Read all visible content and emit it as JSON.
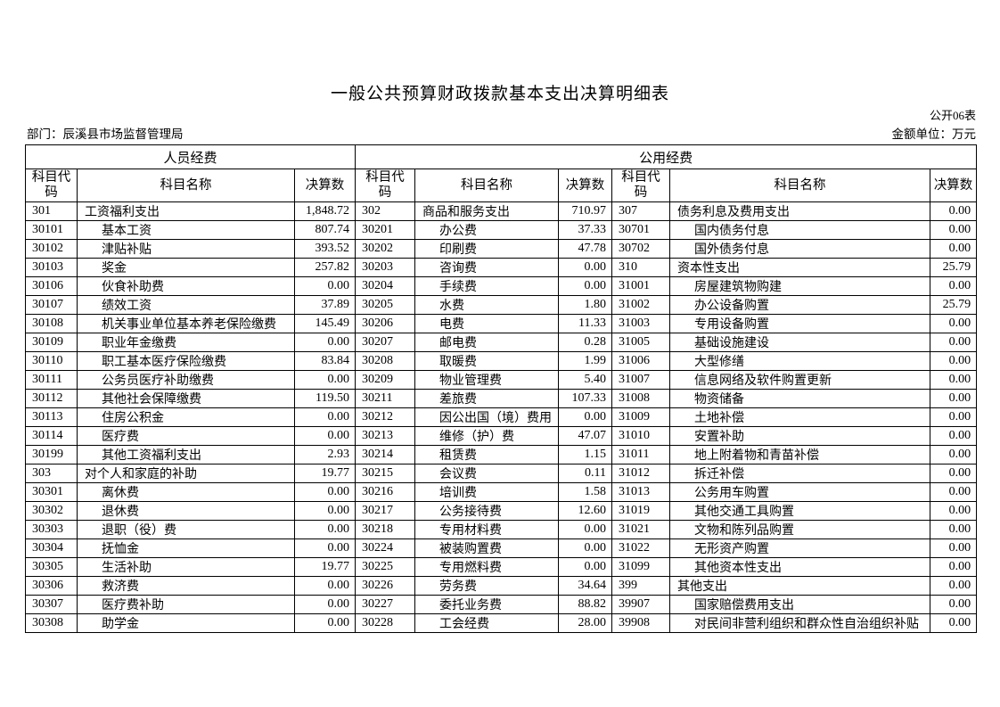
{
  "title": "一般公共预算财政拨款基本支出决算明细表",
  "meta": {
    "table_no": "公开06表",
    "department_label": "部门：",
    "department_name": "辰溪县市场监督管理局",
    "unit": "金额单位：万元"
  },
  "table": {
    "section_headers": {
      "personnel": "人员经费",
      "public": "公用经费"
    },
    "col_headers": {
      "code": "科目代码",
      "name": "科目名称",
      "amount": "决算数"
    },
    "personnel": [
      {
        "code": "301",
        "name": "工资福利支出",
        "level": 0,
        "value": "1,848.72"
      },
      {
        "code": "30101",
        "name": "基本工资",
        "level": 1,
        "value": "807.74"
      },
      {
        "code": "30102",
        "name": "津贴补贴",
        "level": 1,
        "value": "393.52"
      },
      {
        "code": "30103",
        "name": "奖金",
        "level": 1,
        "value": "257.82"
      },
      {
        "code": "30106",
        "name": "伙食补助费",
        "level": 1,
        "value": "0.00"
      },
      {
        "code": "30107",
        "name": "绩效工资",
        "level": 1,
        "value": "37.89"
      },
      {
        "code": "30108",
        "name": "机关事业单位基本养老保险缴费",
        "level": 1,
        "value": "145.49"
      },
      {
        "code": "30109",
        "name": "职业年金缴费",
        "level": 1,
        "value": "0.00"
      },
      {
        "code": "30110",
        "name": "职工基本医疗保险缴费",
        "level": 1,
        "value": "83.84"
      },
      {
        "code": "30111",
        "name": "公务员医疗补助缴费",
        "level": 1,
        "value": "0.00"
      },
      {
        "code": "30112",
        "name": "其他社会保障缴费",
        "level": 1,
        "value": "119.50"
      },
      {
        "code": "30113",
        "name": "住房公积金",
        "level": 1,
        "value": "0.00"
      },
      {
        "code": "30114",
        "name": "医疗费",
        "level": 1,
        "value": "0.00"
      },
      {
        "code": "30199",
        "name": "其他工资福利支出",
        "level": 1,
        "value": "2.93"
      },
      {
        "code": "303",
        "name": "对个人和家庭的补助",
        "level": 0,
        "value": "19.77"
      },
      {
        "code": "30301",
        "name": "离休费",
        "level": 1,
        "value": "0.00"
      },
      {
        "code": "30302",
        "name": "退休费",
        "level": 1,
        "value": "0.00"
      },
      {
        "code": "30303",
        "name": "退职（役）费",
        "level": 1,
        "value": "0.00"
      },
      {
        "code": "30304",
        "name": "抚恤金",
        "level": 1,
        "value": "0.00"
      },
      {
        "code": "30305",
        "name": "生活补助",
        "level": 1,
        "value": "19.77"
      },
      {
        "code": "30306",
        "name": "救济费",
        "level": 1,
        "value": "0.00"
      },
      {
        "code": "30307",
        "name": "医疗费补助",
        "level": 1,
        "value": "0.00"
      },
      {
        "code": "30308",
        "name": "助学金",
        "level": 1,
        "value": "0.00"
      }
    ],
    "public_a": [
      {
        "code": "302",
        "name": "商品和服务支出",
        "level": 0,
        "value": "710.97"
      },
      {
        "code": "30201",
        "name": "办公费",
        "level": 1,
        "value": "37.33"
      },
      {
        "code": "30202",
        "name": "印刷费",
        "level": 1,
        "value": "47.78"
      },
      {
        "code": "30203",
        "name": "咨询费",
        "level": 1,
        "value": "0.00"
      },
      {
        "code": "30204",
        "name": "手续费",
        "level": 1,
        "value": "0.00"
      },
      {
        "code": "30205",
        "name": "水费",
        "level": 1,
        "value": "1.80"
      },
      {
        "code": "30206",
        "name": "电费",
        "level": 1,
        "value": "11.33"
      },
      {
        "code": "30207",
        "name": "邮电费",
        "level": 1,
        "value": "0.28"
      },
      {
        "code": "30208",
        "name": "取暖费",
        "level": 1,
        "value": "1.99"
      },
      {
        "code": "30209",
        "name": "物业管理费",
        "level": 1,
        "value": "5.40"
      },
      {
        "code": "30211",
        "name": "差旅费",
        "level": 1,
        "value": "107.33"
      },
      {
        "code": "30212",
        "name": "因公出国（境）费用",
        "level": 1,
        "value": "0.00"
      },
      {
        "code": "30213",
        "name": "维修（护）费",
        "level": 1,
        "value": "47.07"
      },
      {
        "code": "30214",
        "name": "租赁费",
        "level": 1,
        "value": "1.15"
      },
      {
        "code": "30215",
        "name": "会议费",
        "level": 1,
        "value": "0.11"
      },
      {
        "code": "30216",
        "name": "培训费",
        "level": 1,
        "value": "1.58"
      },
      {
        "code": "30217",
        "name": "公务接待费",
        "level": 1,
        "value": "12.60"
      },
      {
        "code": "30218",
        "name": "专用材料费",
        "level": 1,
        "value": "0.00"
      },
      {
        "code": "30224",
        "name": "被装购置费",
        "level": 1,
        "value": "0.00"
      },
      {
        "code": "30225",
        "name": "专用燃料费",
        "level": 1,
        "value": "0.00"
      },
      {
        "code": "30226",
        "name": "劳务费",
        "level": 1,
        "value": "34.64"
      },
      {
        "code": "30227",
        "name": "委托业务费",
        "level": 1,
        "value": "88.82"
      },
      {
        "code": "30228",
        "name": "工会经费",
        "level": 1,
        "value": "28.00"
      }
    ],
    "public_b": [
      {
        "code": "307",
        "name": "债务利息及费用支出",
        "level": 0,
        "value": "0.00"
      },
      {
        "code": "30701",
        "name": "国内债务付息",
        "level": 1,
        "value": "0.00"
      },
      {
        "code": "30702",
        "name": "国外债务付息",
        "level": 1,
        "value": "0.00"
      },
      {
        "code": "310",
        "name": "资本性支出",
        "level": 0,
        "value": "25.79"
      },
      {
        "code": "31001",
        "name": "房屋建筑物购建",
        "level": 1,
        "value": "0.00"
      },
      {
        "code": "31002",
        "name": "办公设备购置",
        "level": 1,
        "value": "25.79"
      },
      {
        "code": "31003",
        "name": "专用设备购置",
        "level": 1,
        "value": "0.00"
      },
      {
        "code": "31005",
        "name": "基础设施建设",
        "level": 1,
        "value": "0.00"
      },
      {
        "code": "31006",
        "name": "大型修缮",
        "level": 1,
        "value": "0.00"
      },
      {
        "code": "31007",
        "name": "信息网络及软件购置更新",
        "level": 1,
        "value": "0.00"
      },
      {
        "code": "31008",
        "name": "物资储备",
        "level": 1,
        "value": "0.00"
      },
      {
        "code": "31009",
        "name": "土地补偿",
        "level": 1,
        "value": "0.00"
      },
      {
        "code": "31010",
        "name": "安置补助",
        "level": 1,
        "value": "0.00"
      },
      {
        "code": "31011",
        "name": "地上附着物和青苗补偿",
        "level": 1,
        "value": "0.00"
      },
      {
        "code": "31012",
        "name": "拆迁补偿",
        "level": 1,
        "value": "0.00"
      },
      {
        "code": "31013",
        "name": "公务用车购置",
        "level": 1,
        "value": "0.00"
      },
      {
        "code": "31019",
        "name": "其他交通工具购置",
        "level": 1,
        "value": "0.00"
      },
      {
        "code": "31021",
        "name": "文物和陈列品购置",
        "level": 1,
        "value": "0.00"
      },
      {
        "code": "31022",
        "name": "无形资产购置",
        "level": 1,
        "value": "0.00"
      },
      {
        "code": "31099",
        "name": "其他资本性支出",
        "level": 1,
        "value": "0.00"
      },
      {
        "code": "399",
        "name": "其他支出",
        "level": 0,
        "value": "0.00"
      },
      {
        "code": "39907",
        "name": "国家赔偿费用支出",
        "level": 1,
        "value": "0.00"
      },
      {
        "code": "39908",
        "name": "对民间非营利组织和群众性自治组织补贴",
        "level": 1,
        "value": "0.00"
      }
    ]
  }
}
